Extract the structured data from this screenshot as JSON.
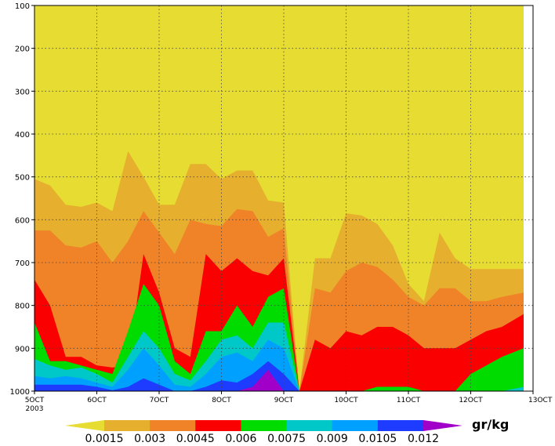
{
  "chart_data": {
    "type": "area",
    "x_tick_labels": [
      "5OCT",
      "6OCT",
      "7OCT",
      "8OCT",
      "9OCT",
      "10OCT",
      "11OCT",
      "12OCT",
      "13OCT"
    ],
    "x_year_label": "2003",
    "y_tick_labels": [
      "100",
      "200",
      "300",
      "400",
      "500",
      "600",
      "700",
      "800",
      "900",
      "1000"
    ],
    "ylim": [
      1000,
      100
    ],
    "grid": true,
    "colorbar": {
      "unit": "gr/kg",
      "levels": [
        "0.0015",
        "0.003",
        "0.0045",
        "0.006",
        "0.0075",
        "0.009",
        "0.0105",
        "0.012"
      ],
      "colors": [
        "#e6dc32",
        "#e6af2d",
        "#f08228",
        "#fa0000",
        "#00dc00",
        "#00c8c8",
        "#00a0ff",
        "#1e3cff",
        "#a000c8"
      ]
    },
    "x_days": [
      5.0,
      5.25,
      5.5,
      5.75,
      6.0,
      6.25,
      6.5,
      6.75,
      7.0,
      7.25,
      7.5,
      7.75,
      8.0,
      8.25,
      8.5,
      8.75,
      9.0,
      9.25,
      9.5,
      9.75,
      10.0,
      10.25,
      10.5,
      10.75,
      11.0,
      11.25,
      11.5,
      11.75,
      12.0,
      12.25,
      12.5,
      12.75
    ],
    "series": [
      {
        "level": "0.0015",
        "values": [
          505,
          520,
          565,
          570,
          560,
          580,
          440,
          500,
          565,
          565,
          470,
          470,
          505,
          485,
          485,
          555,
          560,
          1000,
          690,
          690,
          585,
          590,
          610,
          660,
          750,
          790,
          630,
          690,
          715,
          715,
          715,
          715
        ]
      },
      {
        "level": "0.003",
        "values": [
          625,
          625,
          660,
          665,
          650,
          700,
          650,
          580,
          630,
          680,
          600,
          610,
          615,
          575,
          580,
          640,
          620,
          1000,
          760,
          770,
          720,
          700,
          710,
          740,
          780,
          800,
          760,
          760,
          790,
          790,
          780,
          770
        ]
      },
      {
        "level": "0.0045",
        "values": [
          740,
          800,
          920,
          920,
          940,
          945,
          940,
          680,
          770,
          900,
          920,
          680,
          720,
          690,
          720,
          730,
          690,
          1000,
          880,
          900,
          860,
          870,
          850,
          850,
          870,
          900,
          900,
          900,
          880,
          860,
          850,
          820
        ]
      },
      {
        "level": "0.006",
        "values": [
          840,
          930,
          930,
          940,
          950,
          960,
          860,
          750,
          800,
          930,
          960,
          860,
          860,
          800,
          850,
          780,
          760,
          1000,
          1000,
          1000,
          1000,
          1000,
          990,
          990,
          990,
          1000,
          1000,
          1000,
          960,
          940,
          920,
          900
        ]
      },
      {
        "level": "0.0075",
        "values": [
          925,
          940,
          950,
          945,
          960,
          980,
          920,
          860,
          900,
          960,
          975,
          930,
          880,
          870,
          900,
          840,
          840,
          1000,
          1000,
          1000,
          1000,
          1000,
          1000,
          1000,
          1000,
          1000,
          1000,
          1000,
          1000,
          1000,
          1000,
          990
        ]
      },
      {
        "level": "0.009",
        "values": [
          965,
          970,
          965,
          970,
          980,
          990,
          950,
          900,
          940,
          985,
          990,
          960,
          920,
          910,
          930,
          880,
          900,
          1000,
          1000,
          1000,
          1000,
          1000,
          1000,
          1000,
          1000,
          1000,
          1000,
          1000,
          1000,
          1000,
          1000,
          1000
        ]
      },
      {
        "level": "0.0105",
        "values": [
          985,
          985,
          985,
          985,
          990,
          998,
          990,
          970,
          985,
          1000,
          1000,
          990,
          975,
          980,
          960,
          930,
          960,
          1000,
          1000,
          1000,
          1000,
          1000,
          1000,
          1000,
          1000,
          1000,
          1000,
          1000,
          1000,
          1000,
          1000,
          1000
        ]
      },
      {
        "level": "0.012",
        "values": [
          1000,
          1000,
          1000,
          1000,
          1000,
          1000,
          1000,
          1000,
          1000,
          1000,
          1000,
          1000,
          1000,
          1000,
          990,
          950,
          1000,
          1000,
          1000,
          1000,
          1000,
          1000,
          1000,
          1000,
          1000,
          1000,
          1000,
          1000,
          1000,
          1000,
          1000,
          1000
        ]
      }
    ]
  }
}
